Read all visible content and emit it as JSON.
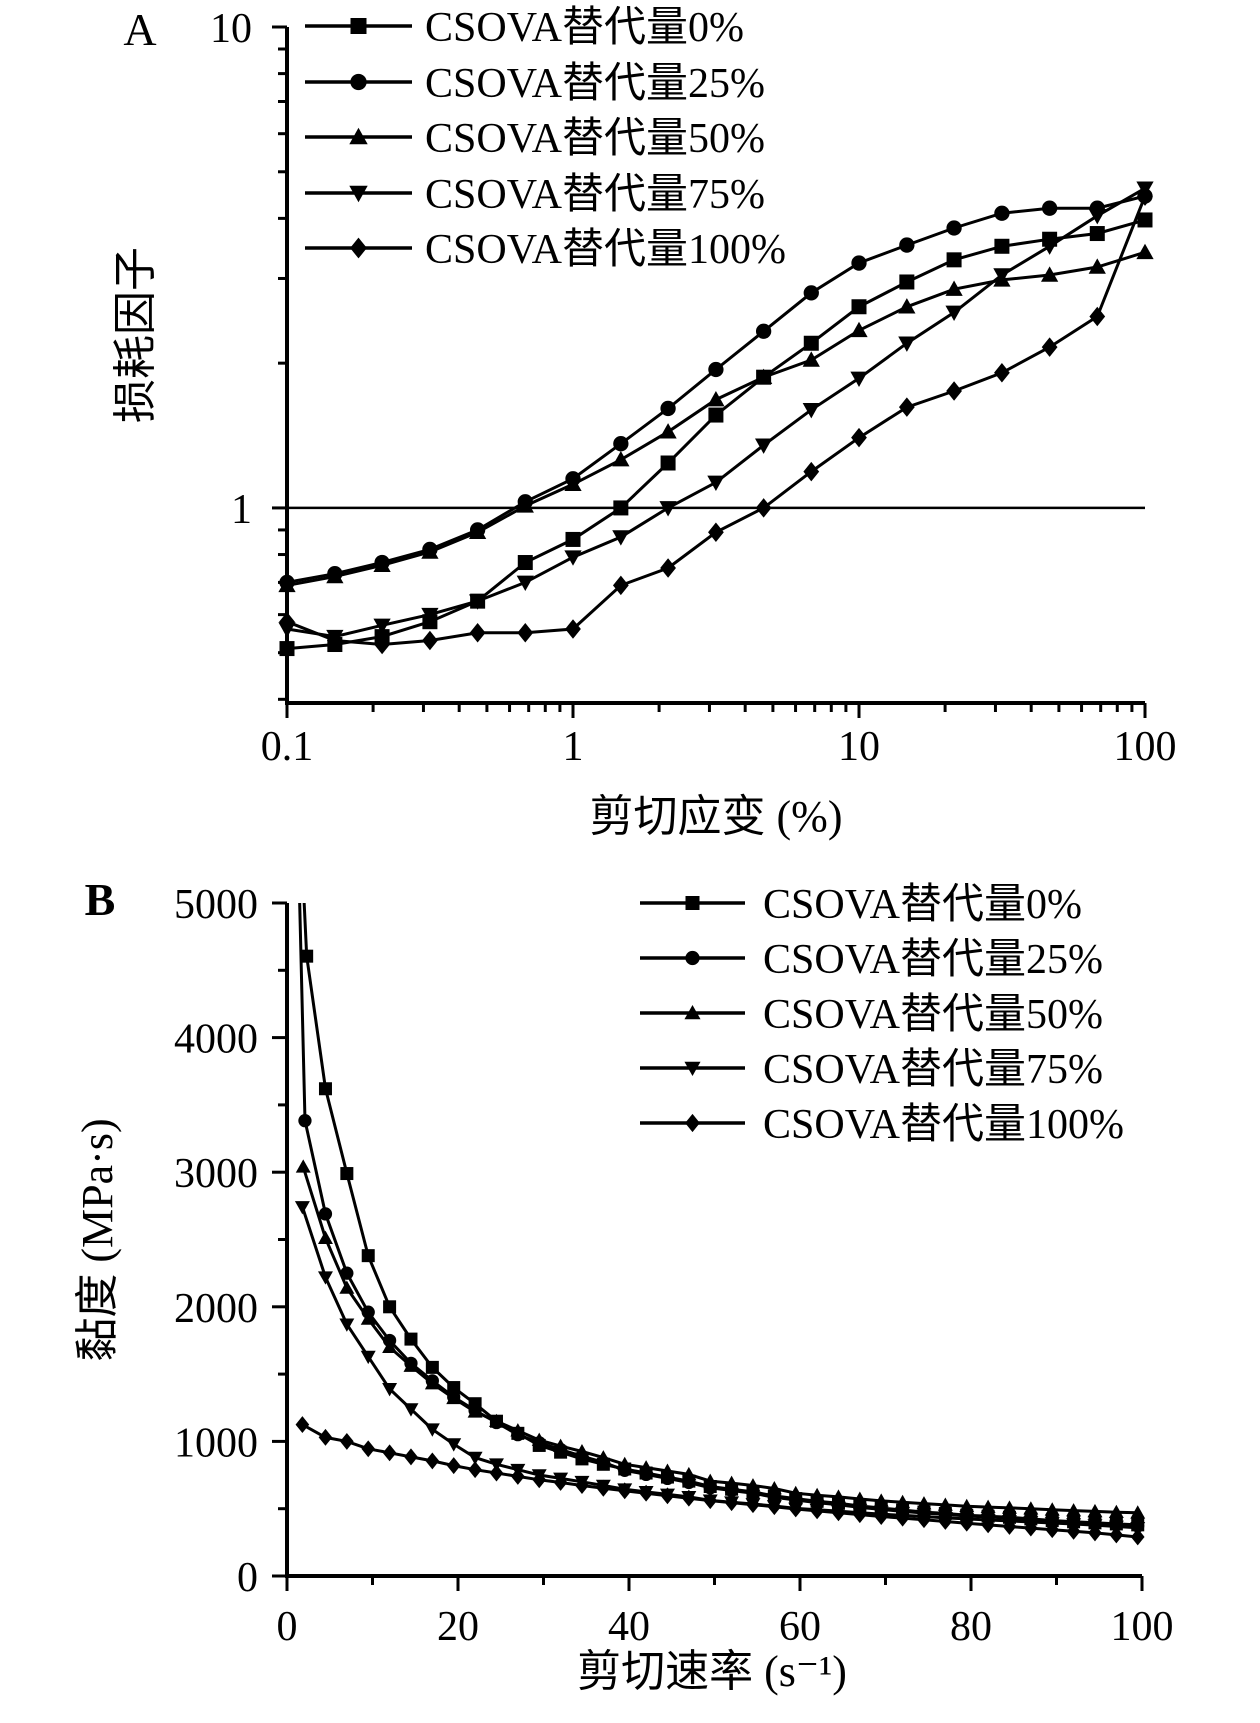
{
  "figure": {
    "background": "#ffffff",
    "foreground": "#000000"
  },
  "chart_data": [
    {
      "id": "A",
      "type": "line",
      "panel_label": "A",
      "xlabel": "剪切应变 (%)",
      "ylabel": "损耗因子",
      "x_scale": "log",
      "y_scale": "log",
      "xlim": [
        0.1,
        100
      ],
      "ylim": [
        0.393,
        10
      ],
      "x_major_ticks": [
        0.1,
        1,
        10,
        100
      ],
      "x_major_labels": [
        "0.1",
        "1",
        "10",
        "100"
      ],
      "x_minor_ticks": [
        0.2,
        0.3,
        0.4,
        0.5,
        0.6,
        0.7,
        0.8,
        0.9,
        2,
        3,
        4,
        5,
        6,
        7,
        8,
        9,
        20,
        30,
        40,
        50,
        60,
        70,
        80,
        90
      ],
      "y_major_ticks": [
        1,
        10
      ],
      "y_major_labels": [
        "1",
        "10"
      ],
      "y_minor_ticks": [
        0.4,
        0.5,
        0.6,
        0.7,
        0.8,
        0.9,
        2,
        3,
        4,
        5,
        6,
        7,
        8,
        9
      ],
      "reference_line_y": 1,
      "legend_position": "top-left-inside",
      "grid": false,
      "x": [
        0.1,
        0.147,
        0.215,
        0.316,
        0.464,
        0.681,
        1,
        1.47,
        2.15,
        3.16,
        4.64,
        6.81,
        10,
        14.7,
        21.5,
        31.6,
        46.4,
        68.1,
        100
      ],
      "series": [
        {
          "name": "CSOVA替代量0%",
          "marker": "square",
          "y": [
            0.51,
            0.52,
            0.54,
            0.58,
            0.64,
            0.77,
            0.86,
            1.0,
            1.24,
            1.56,
            1.87,
            2.2,
            2.62,
            2.95,
            3.28,
            3.5,
            3.62,
            3.72,
            3.97
          ]
        },
        {
          "name": "CSOVA替代量25%",
          "marker": "circle",
          "y": [
            0.7,
            0.73,
            0.77,
            0.82,
            0.9,
            1.03,
            1.15,
            1.36,
            1.61,
            1.94,
            2.33,
            2.8,
            3.23,
            3.52,
            3.82,
            4.1,
            4.2,
            4.2,
            4.45
          ]
        },
        {
          "name": "CSOVA替代量50%",
          "marker": "triangle-up",
          "y": [
            0.69,
            0.72,
            0.76,
            0.81,
            0.89,
            1.01,
            1.12,
            1.26,
            1.44,
            1.68,
            1.87,
            2.03,
            2.34,
            2.62,
            2.85,
            2.98,
            3.05,
            3.17,
            3.4
          ]
        },
        {
          "name": "CSOVA替代量75%",
          "marker": "triangle-down",
          "y": [
            0.56,
            0.54,
            0.57,
            0.6,
            0.64,
            0.7,
            0.79,
            0.87,
            1.0,
            1.13,
            1.35,
            1.6,
            1.86,
            2.2,
            2.55,
            3.05,
            3.5,
            4.05,
            4.62
          ]
        },
        {
          "name": "CSOVA替代量100%",
          "marker": "diamond",
          "y": [
            0.58,
            0.53,
            0.52,
            0.53,
            0.55,
            0.55,
            0.56,
            0.69,
            0.75,
            0.89,
            1.0,
            1.19,
            1.4,
            1.62,
            1.75,
            1.91,
            2.16,
            2.5,
            4.45
          ]
        }
      ]
    },
    {
      "id": "B",
      "type": "line",
      "panel_label": "B",
      "xlabel": "剪切速率 (s⁻¹)",
      "ylabel": "黏度 (MPa·s)",
      "x_scale": "linear",
      "y_scale": "linear",
      "xlim": [
        0,
        100
      ],
      "ylim": [
        0,
        5000
      ],
      "x_major_ticks": [
        0,
        20,
        40,
        60,
        80,
        100
      ],
      "x_major_labels": [
        "0",
        "20",
        "40",
        "60",
        "80",
        "100"
      ],
      "x_minor_ticks": [
        10,
        30,
        50,
        70,
        90
      ],
      "y_major_ticks": [
        0,
        1000,
        2000,
        3000,
        4000,
        5000
      ],
      "y_major_labels": [
        "0",
        "1000",
        "2000",
        "3000",
        "4000",
        "5000"
      ],
      "y_minor_ticks": [
        500,
        1500,
        2500,
        3500,
        4500
      ],
      "legend_position": "top-right-inside",
      "grid": false,
      "clip": true,
      "series": [
        {
          "name": "CSOVA替代量0%",
          "marker": "square",
          "x": [
            1.55,
            2.3,
            4.5,
            7,
            9.5,
            12,
            14.5,
            17,
            19.5,
            22,
            24.5,
            27,
            29.5,
            32,
            34.5,
            37,
            39.5,
            42,
            44.5,
            47,
            49.5,
            52,
            54.5,
            57,
            59.5,
            62,
            64.5,
            67,
            69.5,
            72,
            74.5,
            77,
            79.5,
            82,
            84.5,
            87,
            89.5,
            92,
            94.5,
            97,
            99.5
          ],
          "y": [
            5600,
            4605,
            3620,
            2990,
            2380,
            2000,
            1760,
            1550,
            1400,
            1280,
            1150,
            1060,
            970,
            920,
            870,
            830,
            795,
            765,
            735,
            705,
            665,
            645,
            625,
            595,
            575,
            555,
            540,
            520,
            505,
            490,
            475,
            465,
            452,
            444,
            436,
            424,
            412,
            403,
            395,
            387,
            380
          ]
        },
        {
          "name": "CSOVA替代量25%",
          "marker": "circle",
          "x": [
            1.25,
            2.1,
            4.5,
            7,
            9.5,
            12,
            14.5,
            17,
            19.5,
            22,
            24.5,
            27,
            29.5,
            32,
            34.5,
            37,
            39.5,
            42,
            44.5,
            47,
            49.5,
            52,
            54.5,
            57,
            59.5,
            62,
            64.5,
            67,
            69.5,
            72,
            74.5,
            77,
            79.5,
            82,
            84.5,
            87,
            89.5,
            92,
            94.5,
            97,
            99.5
          ],
          "y": [
            5600,
            3383,
            2690,
            2250,
            1960,
            1750,
            1580,
            1450,
            1330,
            1230,
            1140,
            1050,
            990,
            940,
            890,
            845,
            785,
            755,
            725,
            695,
            655,
            635,
            615,
            585,
            565,
            545,
            530,
            510,
            495,
            480,
            468,
            458,
            446,
            438,
            430,
            419,
            408,
            399,
            390,
            380,
            372
          ]
        },
        {
          "name": "CSOVA替代量50%",
          "marker": "triangle-up",
          "x": [
            1.9,
            4.5,
            7,
            9.5,
            12,
            14.5,
            17,
            19.5,
            22,
            24.5,
            27,
            29.5,
            32,
            34.5,
            37,
            39.5,
            42,
            44.5,
            47,
            49.5,
            52,
            54.5,
            57,
            59.5,
            62,
            64.5,
            67,
            69.5,
            72,
            74.5,
            77,
            79.5,
            82,
            84.5,
            87,
            89.5,
            92,
            94.5,
            97,
            99.5
          ],
          "y": [
            3040,
            2510,
            2140,
            1910,
            1700,
            1560,
            1430,
            1320,
            1220,
            1150,
            1080,
            1010,
            965,
            925,
            880,
            830,
            805,
            780,
            755,
            705,
            690,
            672,
            650,
            615,
            600,
            588,
            572,
            558,
            548,
            538,
            528,
            518,
            512,
            506,
            500,
            492,
            486,
            480,
            474,
            470
          ]
        },
        {
          "name": "CSOVA替代量75%",
          "marker": "triangle-down",
          "x": [
            1.8,
            4.5,
            7,
            9.5,
            12,
            14.5,
            17,
            19.5,
            22,
            24.5,
            27,
            29.5,
            32,
            34.5,
            37,
            39.5,
            42,
            44.5,
            47,
            49.5,
            52,
            54.5,
            57,
            59.5,
            62,
            64.5,
            67,
            69.5,
            72,
            74.5,
            77,
            79.5,
            82,
            84.5,
            87,
            89.5,
            92,
            94.5,
            97,
            99.5
          ],
          "y": [
            2742,
            2220,
            1870,
            1630,
            1390,
            1240,
            1090,
            980,
            880,
            830,
            790,
            750,
            725,
            700,
            672,
            645,
            625,
            606,
            588,
            562,
            548,
            535,
            520,
            502,
            492,
            482,
            470,
            460,
            450,
            442,
            432,
            424,
            416,
            409,
            401,
            394,
            386,
            378,
            368,
            358
          ]
        },
        {
          "name": "CSOVA替代量100%",
          "marker": "diamond",
          "x": [
            1.8,
            4.5,
            7,
            9.5,
            12,
            14.5,
            17,
            19.5,
            22,
            24.5,
            27,
            29.5,
            32,
            34.5,
            37,
            39.5,
            42,
            44.5,
            47,
            49.5,
            52,
            54.5,
            57,
            59.5,
            62,
            64.5,
            67,
            69.5,
            72,
            74.5,
            77,
            79.5,
            82,
            84.5,
            87,
            89.5,
            92,
            94.5,
            97,
            99.5
          ],
          "y": [
            1125,
            1030,
            1000,
            945,
            915,
            885,
            855,
            820,
            790,
            765,
            740,
            715,
            695,
            672,
            652,
            633,
            615,
            596,
            578,
            560,
            545,
            530,
            515,
            498,
            484,
            470,
            456,
            442,
            430,
            418,
            405,
            392,
            380,
            368,
            356,
            344,
            332,
            320,
            305,
            290
          ]
        }
      ]
    }
  ]
}
